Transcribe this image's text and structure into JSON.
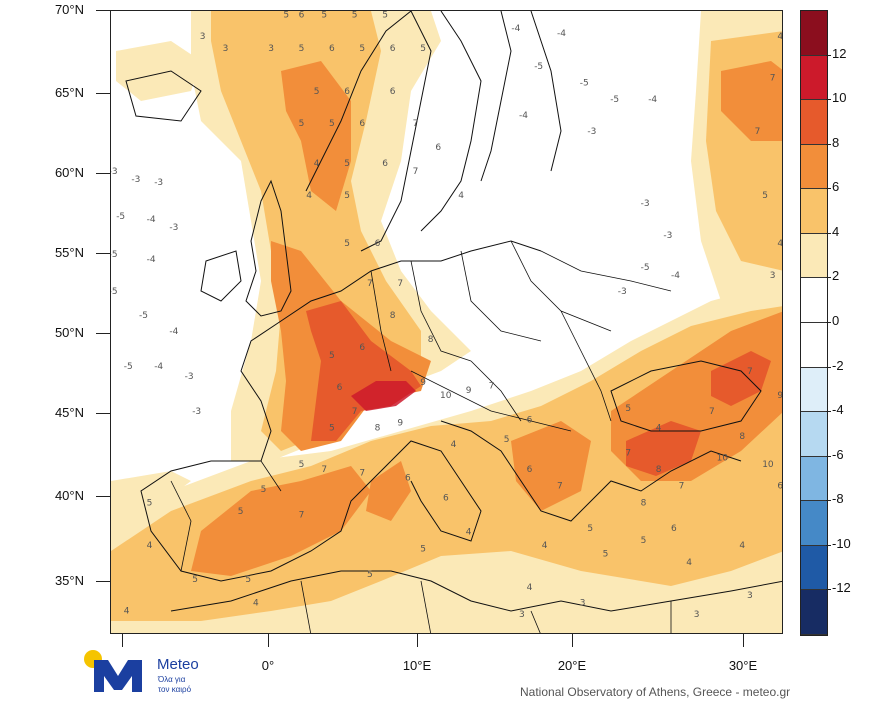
{
  "map": {
    "lat_labels": [
      "70°N",
      "65°N",
      "60°N",
      "55°N",
      "50°N",
      "45°N",
      "40°N",
      "35°N"
    ],
    "lon_labels": [
      "0°",
      "10°E",
      "20°E",
      "30°E"
    ]
  },
  "colorbar": {
    "labels": [
      "12",
      "10",
      "8",
      "6",
      "4",
      "2",
      "0",
      "-2",
      "-4",
      "-6",
      "-8",
      "-10",
      "-12"
    ],
    "bins": [
      {
        "range": "> 12",
        "color": "#8b0e1e"
      },
      {
        "range": "10 to 12",
        "color": "#cc1a2b"
      },
      {
        "range": "8 to 10",
        "color": "#e65a2c"
      },
      {
        "range": "6 to 8",
        "color": "#f28e3a"
      },
      {
        "range": "4 to 6",
        "color": "#f9c36a"
      },
      {
        "range": "2 to 4",
        "color": "#fbe9b7"
      },
      {
        "range": "0 to 2",
        "color": "#ffffff"
      },
      {
        "range": "-2 to 0",
        "color": "#ffffff"
      },
      {
        "range": "-4 to -2",
        "color": "#deeef9"
      },
      {
        "range": "-6 to -4",
        "color": "#b6d9f1"
      },
      {
        "range": "-8 to -6",
        "color": "#7fb6e2"
      },
      {
        "range": "-10 to -8",
        "color": "#4589c7"
      },
      {
        "range": "-12 to -10",
        "color": "#1f5aa6"
      },
      {
        "range": "< -12",
        "color": "#172c63"
      }
    ]
  },
  "logo": {
    "name": "Meteo",
    "tagline_line1": "Όλα για",
    "tagline_line2": "τον καιρό",
    "brand_colors": {
      "blue": "#1b3fa0",
      "yellow": "#f5c400"
    }
  },
  "credit": "National Observatory of Athens, Greece - meteo.gr",
  "contour_labels": [
    "3",
    "5",
    "6",
    "7",
    "4",
    "-3",
    "-4",
    "-5",
    "8",
    "9",
    "10",
    "2"
  ],
  "contour_label_marks": [
    {
      "text": "3",
      "lon": -8.5,
      "lat": 68.3
    },
    {
      "text": "3",
      "lon": -7.0,
      "lat": 67.6
    },
    {
      "text": "5",
      "lon": -3.0,
      "lat": 69.6
    },
    {
      "text": "6",
      "lon": -2.0,
      "lat": 69.6
    },
    {
      "text": "5",
      "lon": -0.5,
      "lat": 69.6
    },
    {
      "text": "5",
      "lon": 1.5,
      "lat": 69.6
    },
    {
      "text": "5",
      "lon": 3.5,
      "lat": 69.6
    },
    {
      "text": "3",
      "lon": -4.0,
      "lat": 67.6
    },
    {
      "text": "5",
      "lon": -2.0,
      "lat": 67.6
    },
    {
      "text": "6",
      "lon": 0.0,
      "lat": 67.6
    },
    {
      "text": "5",
      "lon": 2.0,
      "lat": 67.6
    },
    {
      "text": "6",
      "lon": 4.0,
      "lat": 67.6
    },
    {
      "text": "5",
      "lon": 6.0,
      "lat": 67.6
    },
    {
      "text": "5",
      "lon": -1.0,
      "lat": 65.0
    },
    {
      "text": "6",
      "lon": 1.0,
      "lat": 65.0
    },
    {
      "text": "6",
      "lon": 4.0,
      "lat": 65.0
    },
    {
      "text": "5",
      "lon": -2.0,
      "lat": 63.0
    },
    {
      "text": "5",
      "lon": 0.0,
      "lat": 63.0
    },
    {
      "text": "6",
      "lon": 2.0,
      "lat": 63.0
    },
    {
      "text": "7",
      "lon": 5.5,
      "lat": 63.0
    },
    {
      "text": "6",
      "lon": 7.0,
      "lat": 61.5
    },
    {
      "text": "4",
      "lon": -1.0,
      "lat": 60.5
    },
    {
      "text": "5",
      "lon": 1.0,
      "lat": 60.5
    },
    {
      "text": "6",
      "lon": 3.5,
      "lat": 60.5
    },
    {
      "text": "7",
      "lon": 5.5,
      "lat": 60.0
    },
    {
      "text": "4",
      "lon": -1.5,
      "lat": 58.5
    },
    {
      "text": "5",
      "lon": 1.0,
      "lat": 58.5
    },
    {
      "text": "4",
      "lon": 8.5,
      "lat": 58.5
    },
    {
      "text": "-3",
      "lon": -14.5,
      "lat": 60.0
    },
    {
      "text": "-3",
      "lon": -13.0,
      "lat": 59.5
    },
    {
      "text": "-3",
      "lon": -11.5,
      "lat": 59.3
    },
    {
      "text": "-5",
      "lon": -14.0,
      "lat": 57.2
    },
    {
      "text": "-4",
      "lon": -12.0,
      "lat": 57.0
    },
    {
      "text": "-3",
      "lon": -10.5,
      "lat": 56.5
    },
    {
      "text": "-5",
      "lon": -14.5,
      "lat": 54.8
    },
    {
      "text": "-4",
      "lon": -12.0,
      "lat": 54.5
    },
    {
      "text": "-5",
      "lon": -14.5,
      "lat": 52.5
    },
    {
      "text": "-5",
      "lon": -12.5,
      "lat": 51.0
    },
    {
      "text": "-4",
      "lon": -10.5,
      "lat": 50.0
    },
    {
      "text": "-5",
      "lon": -13.5,
      "lat": 47.8
    },
    {
      "text": "-4",
      "lon": -11.5,
      "lat": 47.8
    },
    {
      "text": "-3",
      "lon": -9.5,
      "lat": 47.2
    },
    {
      "text": "-3",
      "lon": -9.0,
      "lat": 45.0
    },
    {
      "text": "-4",
      "lon": 12.0,
      "lat": 68.8
    },
    {
      "text": "-4",
      "lon": 15.0,
      "lat": 68.5
    },
    {
      "text": "-5",
      "lon": 13.5,
      "lat": 66.5
    },
    {
      "text": "-5",
      "lon": 16.5,
      "lat": 65.5
    },
    {
      "text": "-5",
      "lon": 18.5,
      "lat": 64.5
    },
    {
      "text": "-4",
      "lon": 21.0,
      "lat": 64.5
    },
    {
      "text": "-4",
      "lon": 12.5,
      "lat": 63.5
    },
    {
      "text": "-3",
      "lon": 17.0,
      "lat": 62.5
    },
    {
      "text": "-3",
      "lon": 20.5,
      "lat": 58.0
    },
    {
      "text": "-3",
      "lon": 22.0,
      "lat": 56.0
    },
    {
      "text": "-5",
      "lon": 20.5,
      "lat": 54.0
    },
    {
      "text": "-4",
      "lon": 22.5,
      "lat": 53.5
    },
    {
      "text": "-3",
      "lon": 19.0,
      "lat": 52.5
    },
    {
      "text": "4",
      "lon": 29.5,
      "lat": 68.3
    },
    {
      "text": "5",
      "lon": 31.0,
      "lat": 67.6
    },
    {
      "text": "7",
      "lon": 29.0,
      "lat": 65.8
    },
    {
      "text": "7",
      "lon": 31.0,
      "lat": 64.0
    },
    {
      "text": "7",
      "lon": 28.0,
      "lat": 62.5
    },
    {
      "text": "6",
      "lon": 30.0,
      "lat": 60.5
    },
    {
      "text": "5",
      "lon": 28.5,
      "lat": 58.5
    },
    {
      "text": "4",
      "lon": 29.5,
      "lat": 55.5
    },
    {
      "text": "3",
      "lon": 29.0,
      "lat": 53.5
    },
    {
      "text": "5",
      "lon": 1.0,
      "lat": 55.5
    },
    {
      "text": "6",
      "lon": 3.0,
      "lat": 55.5
    },
    {
      "text": "7",
      "lon": 2.5,
      "lat": 53.0
    },
    {
      "text": "7",
      "lon": 4.5,
      "lat": 53.0
    },
    {
      "text": "8",
      "lon": 4.0,
      "lat": 51.0
    },
    {
      "text": "8",
      "lon": 6.5,
      "lat": 49.5
    },
    {
      "text": "6",
      "lon": 2.0,
      "lat": 49.0
    },
    {
      "text": "5",
      "lon": 0.0,
      "lat": 48.5
    },
    {
      "text": "9",
      "lon": 6.0,
      "lat": 46.8
    },
    {
      "text": "10",
      "lon": 7.3,
      "lat": 46.0
    },
    {
      "text": "9",
      "lon": 9.0,
      "lat": 46.3
    },
    {
      "text": "7",
      "lon": 10.5,
      "lat": 46.6
    },
    {
      "text": "9",
      "lon": 4.5,
      "lat": 44.3
    },
    {
      "text": "8",
      "lon": 3.0,
      "lat": 44.0
    },
    {
      "text": "7",
      "lon": 1.5,
      "lat": 45.0
    },
    {
      "text": "6",
      "lon": 0.5,
      "lat": 46.5
    },
    {
      "text": "5",
      "lon": 0.0,
      "lat": 44.0
    },
    {
      "text": "5",
      "lon": -2.0,
      "lat": 41.8
    },
    {
      "text": "7",
      "lon": -0.5,
      "lat": 41.5
    },
    {
      "text": "7",
      "lon": 2.0,
      "lat": 41.3
    },
    {
      "text": "6",
      "lon": 5.0,
      "lat": 41.0
    },
    {
      "text": "5",
      "lon": -4.5,
      "lat": 40.3
    },
    {
      "text": "5",
      "lon": -6.0,
      "lat": 39.0
    },
    {
      "text": "7",
      "lon": -2.0,
      "lat": 38.8
    },
    {
      "text": "5",
      "lon": -12.0,
      "lat": 39.5
    },
    {
      "text": "4",
      "lon": -12.0,
      "lat": 37.0
    },
    {
      "text": "5",
      "lon": -9.0,
      "lat": 35.0
    },
    {
      "text": "5",
      "lon": -5.5,
      "lat": 35.0
    },
    {
      "text": "4",
      "lon": -13.5,
      "lat": 33.0
    },
    {
      "text": "4",
      "lon": -5.0,
      "lat": 33.5
    },
    {
      "text": "5",
      "lon": 2.5,
      "lat": 35.3
    },
    {
      "text": "5",
      "lon": 6.0,
      "lat": 36.8
    },
    {
      "text": "4",
      "lon": 9.0,
      "lat": 37.8
    },
    {
      "text": "6",
      "lon": 7.5,
      "lat": 39.8
    },
    {
      "text": "6",
      "lon": 13.0,
      "lat": 41.5
    },
    {
      "text": "7",
      "lon": 15.0,
      "lat": 40.5
    },
    {
      "text": "5",
      "lon": 11.5,
      "lat": 43.3
    },
    {
      "text": "6",
      "lon": 13.0,
      "lat": 44.5
    },
    {
      "text": "5",
      "lon": 17.0,
      "lat": 38.0
    },
    {
      "text": "4",
      "lon": 14.0,
      "lat": 37.0
    },
    {
      "text": "5",
      "lon": 18.0,
      "lat": 36.5
    },
    {
      "text": "4",
      "lon": 13.0,
      "lat": 34.5
    },
    {
      "text": "3",
      "lon": 16.5,
      "lat": 33.5
    },
    {
      "text": "3",
      "lon": 12.5,
      "lat": 32.8
    },
    {
      "text": "7",
      "lon": 19.5,
      "lat": 42.5
    },
    {
      "text": "8",
      "lon": 21.5,
      "lat": 41.5
    },
    {
      "text": "7",
      "lon": 23.0,
      "lat": 40.5
    },
    {
      "text": "8",
      "lon": 20.5,
      "lat": 39.5
    },
    {
      "text": "6",
      "lon": 22.5,
      "lat": 38.0
    },
    {
      "text": "5",
      "lon": 20.5,
      "lat": 37.3
    },
    {
      "text": "4",
      "lon": 23.5,
      "lat": 36.0
    },
    {
      "text": "5",
      "lon": 19.5,
      "lat": 45.2
    },
    {
      "text": "4",
      "lon": 21.5,
      "lat": 44.0
    },
    {
      "text": "10",
      "lon": 25.5,
      "lat": 42.2
    },
    {
      "text": "10",
      "lon": 28.5,
      "lat": 41.8
    },
    {
      "text": "8",
      "lon": 27.0,
      "lat": 43.5
    },
    {
      "text": "7",
      "lon": 25.0,
      "lat": 45.0
    },
    {
      "text": "9",
      "lon": 29.5,
      "lat": 46.0
    },
    {
      "text": "8",
      "lon": 31.0,
      "lat": 44.5
    },
    {
      "text": "7",
      "lon": 32.0,
      "lat": 48.5
    },
    {
      "text": "8",
      "lon": 30.0,
      "lat": 49.0
    },
    {
      "text": "7",
      "lon": 27.5,
      "lat": 47.5
    },
    {
      "text": "6",
      "lon": 29.5,
      "lat": 40.5
    },
    {
      "text": "5",
      "lon": 31.0,
      "lat": 38.0
    },
    {
      "text": "4",
      "lon": 27.0,
      "lat": 37.0
    },
    {
      "text": "3",
      "lon": 27.5,
      "lat": 34.0
    },
    {
      "text": "3",
      "lon": 24.0,
      "lat": 32.8
    },
    {
      "text": "4",
      "lon": 32.0,
      "lat": 35.0
    },
    {
      "text": "3",
      "lon": 30.0,
      "lat": 33.2
    },
    {
      "text": "4",
      "lon": 8.0,
      "lat": 43.0
    }
  ]
}
